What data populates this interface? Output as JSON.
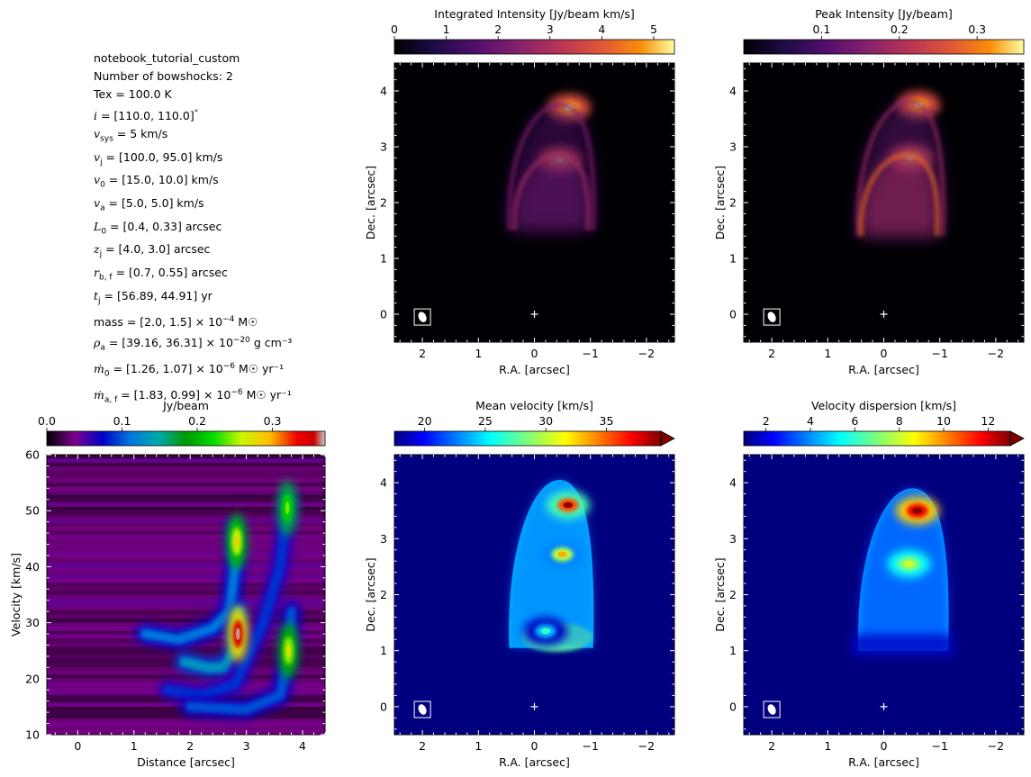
{
  "params": {
    "name": "notebook_tutorial_custom",
    "lines_plain": [
      "Number of bowshocks: 2",
      "Tex = 100.0 K"
    ],
    "lines_math": [
      {
        "sym": "i",
        "sub": "",
        "rest": " = [110.0, 110.0]",
        "sup": "°",
        "unit": ""
      },
      {
        "sym": "v",
        "sub": "sys",
        "rest": " = 5 km/s",
        "sup": "",
        "unit": ""
      },
      {
        "sym": "v",
        "sub": "j",
        "rest": " = [100.0, 95.0] km/s",
        "sup": "",
        "unit": ""
      },
      {
        "sym": "v",
        "sub": "0",
        "rest": " = [15.0, 10.0] km/s",
        "sup": "",
        "unit": ""
      },
      {
        "sym": "v",
        "sub": "a",
        "rest": " = [5.0, 5.0] km/s",
        "sup": "",
        "unit": ""
      },
      {
        "sym": "L",
        "sub": "0",
        "rest": " = [0.4, 0.33] arcsec",
        "sup": "",
        "unit": ""
      },
      {
        "sym": "z",
        "sub": "j",
        "rest": " = [4.0, 3.0] arcsec",
        "sup": "",
        "unit": ""
      },
      {
        "sym": "r",
        "sub": "b, f",
        "rest": " = [0.7, 0.55] arcsec",
        "sup": "",
        "unit": ""
      },
      {
        "sym": "t",
        "sub": "j",
        "rest": " = [56.89, 44.91] yr",
        "sup": "",
        "unit": ""
      },
      {
        "sym": "",
        "sub": "",
        "rest": "mass  = [2.0, 1.5] × 10",
        "sup": "−4",
        "unit": " M☉"
      },
      {
        "sym": "ρ",
        "sub": "a",
        "rest": " = [39.16, 36.31] × 10",
        "sup": "−20",
        "unit": " g cm⁻³"
      },
      {
        "sym": "ṁ",
        "sub": "0",
        "rest": " = [1.26, 1.07] × 10",
        "sup": "−6",
        "unit": " M☉ yr⁻¹"
      },
      {
        "sym": "ṁ",
        "sub": "a, f",
        "rest": " = [1.83, 0.99] × 10",
        "sup": "−6",
        "unit": " M☉ yr⁻¹"
      }
    ]
  },
  "chart_data": [
    {
      "type": "heatmap",
      "title": "Integrated Intensity [Jy/beam km/s]",
      "colormap": "inferno",
      "colorbar_ticks": [
        "0",
        "1",
        "2",
        "3",
        "4",
        "5"
      ],
      "clim": [
        0,
        5.4
      ],
      "extend": false,
      "xlabel": "R.A. [arcsec]",
      "ylabel": "Dec. [arcsec]",
      "xlim": [
        2.5,
        -2.5
      ],
      "ylim": [
        -0.5,
        4.5
      ],
      "xticks": [
        "2",
        "1",
        "0",
        "−1",
        "−2"
      ],
      "yticks": [
        "0",
        "1",
        "2",
        "3",
        "4"
      ],
      "background_value": 0.0,
      "features": [
        {
          "kind": "knot",
          "ra": -0.62,
          "dec": 3.7,
          "value": 5.2
        },
        {
          "kind": "knot",
          "ra": -0.45,
          "dec": 2.76,
          "value": 5.3
        },
        {
          "kind": "shell",
          "ra_left": 0.45,
          "ra_right": -1.05,
          "dec_base": 1.5,
          "dec_apex": 3.75,
          "value": 1.4
        },
        {
          "kind": "shell",
          "ra_left": 0.35,
          "ra_right": -0.95,
          "dec_base": 1.5,
          "dec_apex": 2.85,
          "value": 1.8
        }
      ]
    },
    {
      "type": "heatmap",
      "title": "Peak Intensity [Jy/beam]",
      "colormap": "inferno",
      "colorbar_ticks": [
        "0.1",
        "0.2",
        "0.3"
      ],
      "clim": [
        0.0,
        0.36
      ],
      "extend": false,
      "xlabel": "R.A. [arcsec]",
      "ylabel": "Dec. [arcsec]",
      "xlim": [
        2.5,
        -2.5
      ],
      "ylim": [
        -0.5,
        4.5
      ],
      "xticks": [
        "2",
        "1",
        "0",
        "−1",
        "−2"
      ],
      "yticks": [
        "0",
        "1",
        "2",
        "3",
        "4"
      ],
      "background_value": 0.0,
      "features": [
        {
          "kind": "knot",
          "ra": -0.62,
          "dec": 3.75,
          "value": 0.34
        },
        {
          "kind": "knot",
          "ra": -0.48,
          "dec": 2.8,
          "value": 0.35
        },
        {
          "kind": "shell",
          "ra_left": 0.45,
          "ra_right": -1.05,
          "dec_base": 1.4,
          "dec_apex": 3.8,
          "value": 0.11
        },
        {
          "kind": "shell",
          "ra_left": 0.4,
          "ra_right": -0.95,
          "dec_base": 1.4,
          "dec_apex": 2.85,
          "value": 0.18
        }
      ]
    },
    {
      "type": "heatmap",
      "title": "Jy/beam",
      "colormap": "nipy_spectral",
      "colorbar_ticks": [
        "0.0",
        "0.1",
        "0.2",
        "0.3"
      ],
      "clim": [
        0.0,
        0.37
      ],
      "extend": false,
      "xlabel": "Distance [arcsec]",
      "ylabel": "Velocity [km/s]",
      "xlim": [
        -0.55,
        4.4
      ],
      "ylim": [
        10,
        60
      ],
      "xticks": [
        "0",
        "1",
        "2",
        "3",
        "4"
      ],
      "yticks": [
        "10",
        "20",
        "30",
        "40",
        "50",
        "60"
      ],
      "background_value": 0.02,
      "features": [
        {
          "kind": "arc",
          "points": [
            [
              1.2,
              28
            ],
            [
              1.8,
              27
            ],
            [
              2.4,
              29
            ],
            [
              2.7,
              32
            ],
            [
              2.8,
              40
            ],
            [
              2.8,
              47
            ]
          ],
          "value": 0.1
        },
        {
          "kind": "arc",
          "points": [
            [
              1.9,
              23
            ],
            [
              2.3,
              22
            ],
            [
              2.6,
              22
            ],
            [
              2.8,
              25
            ],
            [
              2.85,
              32
            ]
          ],
          "value": 0.12
        },
        {
          "kind": "arc",
          "points": [
            [
              1.6,
              18
            ],
            [
              2.2,
              17
            ],
            [
              2.8,
              19
            ],
            [
              3.3,
              30
            ],
            [
              3.6,
              40
            ],
            [
              3.75,
              52
            ]
          ],
          "value": 0.08
        },
        {
          "kind": "arc",
          "points": [
            [
              2.0,
              15
            ],
            [
              3.0,
              14.5
            ],
            [
              3.6,
              17
            ],
            [
              3.75,
              24
            ],
            [
              3.8,
              32
            ]
          ],
          "value": 0.09
        },
        {
          "kind": "knot",
          "dist": 2.83,
          "vel": 44.5,
          "value": 0.26
        },
        {
          "kind": "knot",
          "dist": 2.85,
          "vel": 28.0,
          "value": 0.36
        },
        {
          "kind": "knot",
          "dist": 3.73,
          "vel": 50.5,
          "value": 0.22
        },
        {
          "kind": "knot",
          "dist": 3.75,
          "vel": 25.0,
          "value": 0.25
        }
      ]
    },
    {
      "type": "heatmap",
      "title": "Mean velocity [km/s]",
      "colormap": "jet",
      "colorbar_ticks": [
        "20",
        "25",
        "30",
        "35"
      ],
      "clim": [
        17.5,
        39.5
      ],
      "extend": true,
      "xlabel": "R.A. [arcsec]",
      "ylabel": "Dec. [arcsec]",
      "xlim": [
        2.5,
        -2.5
      ],
      "ylim": [
        -0.5,
        4.5
      ],
      "xticks": [
        "2",
        "1",
        "0",
        "−1",
        "−2"
      ],
      "yticks": [
        "0",
        "1",
        "2",
        "3",
        "4"
      ],
      "background_value": 17.5,
      "features": [
        {
          "kind": "region",
          "ra_left": 0.45,
          "ra_right": -1.05,
          "dec_base": 1.05,
          "dec_apex": 4.05,
          "value": 24.0
        },
        {
          "kind": "knot",
          "ra": -0.6,
          "dec": 3.6,
          "value": 39.0
        },
        {
          "kind": "knot",
          "ra": -0.5,
          "dec": 2.72,
          "value": 33.0
        },
        {
          "kind": "knot",
          "ra": -0.2,
          "dec": 1.35,
          "value": 27.0
        }
      ]
    },
    {
      "type": "heatmap",
      "title": "Velocity dispersion [km/s]",
      "colormap": "jet",
      "colorbar_ticks": [
        "2",
        "4",
        "6",
        "8",
        "10",
        "12"
      ],
      "clim": [
        1.0,
        13.0
      ],
      "extend": true,
      "xlabel": "R.A. [arcsec]",
      "ylabel": "Dec. [arcsec]",
      "xlim": [
        2.5,
        -2.5
      ],
      "ylim": [
        -0.5,
        4.5
      ],
      "xticks": [
        "2",
        "1",
        "0",
        "−1",
        "−2"
      ],
      "yticks": [
        "0",
        "1",
        "2",
        "3",
        "4"
      ],
      "background_value": 1.0,
      "features": [
        {
          "kind": "region",
          "ra_left": 0.45,
          "ra_right": -1.15,
          "dec_base": 1.0,
          "dec_apex": 3.9,
          "value": 4.5
        },
        {
          "kind": "knot",
          "ra": -0.6,
          "dec": 3.5,
          "value": 13.0
        },
        {
          "kind": "knot",
          "ra": -0.45,
          "dec": 2.55,
          "value": 8.0
        }
      ]
    }
  ]
}
